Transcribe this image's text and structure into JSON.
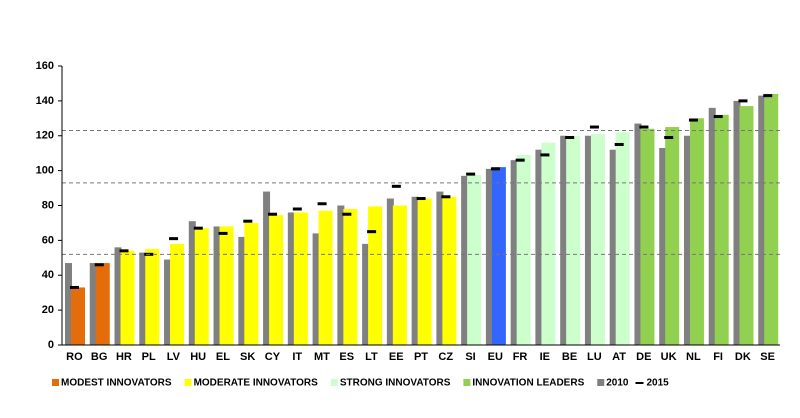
{
  "chart_data": {
    "type": "bar",
    "categories": [
      "RO",
      "BG",
      "HR",
      "PL",
      "LV",
      "HU",
      "EL",
      "SK",
      "CY",
      "IT",
      "MT",
      "ES",
      "LT",
      "EE",
      "PT",
      "CZ",
      "SI",
      "EU",
      "FR",
      "IE",
      "BE",
      "LU",
      "AT",
      "DE",
      "UK",
      "NL",
      "FI",
      "DK",
      "SE"
    ],
    "groups": [
      {
        "name": "MODEST INNOVATORS",
        "color": "#e46c0a"
      },
      {
        "name": "MODERATE INNOVATORS",
        "color": "#ffff00"
      },
      {
        "name": "STRONG INNOVATORS",
        "color": "#ccffcc"
      },
      {
        "name": "INNOVATION LEADERS",
        "color": "#92d050"
      }
    ],
    "series": [
      {
        "values": [
          33,
          47,
          54,
          55,
          58,
          67,
          68,
          70,
          74.5,
          76,
          77,
          78,
          79.5,
          80,
          84,
          85,
          97.5,
          102,
          109,
          116,
          120,
          121,
          122,
          124,
          125,
          130,
          132,
          137,
          144
        ],
        "colors": [
          "#e46c0a",
          "#e46c0a",
          "#ffff00",
          "#ffff00",
          "#ffff00",
          "#ffff00",
          "#ffff00",
          "#ffff00",
          "#ffff00",
          "#ffff00",
          "#ffff00",
          "#ffff00",
          "#ffff00",
          "#ffff00",
          "#ffff00",
          "#ffff00",
          "#ccffcc",
          "#3366ff",
          "#ccffcc",
          "#ccffcc",
          "#ccffcc",
          "#ccffcc",
          "#ccffcc",
          "#92d050",
          "#92d050",
          "#92d050",
          "#92d050",
          "#92d050",
          "#92d050"
        ]
      },
      {
        "name": "2010",
        "color": "#808080",
        "values": [
          47,
          47,
          56,
          53,
          49,
          71,
          68,
          62,
          88,
          76,
          64,
          80,
          58,
          84,
          85,
          88,
          97,
          101,
          106,
          112,
          120,
          120,
          112,
          127,
          113,
          120,
          136,
          140,
          143
        ]
      },
      {
        "name": "2015",
        "color": "#000000",
        "values": [
          33,
          46,
          54,
          52,
          61,
          67,
          64,
          71,
          75,
          78,
          81,
          75,
          65,
          91,
          84,
          85,
          98,
          101,
          106,
          109,
          119,
          125,
          115,
          125,
          119,
          129,
          131,
          140,
          143
        ]
      }
    ],
    "reference_lines": [
      52,
      93,
      123
    ],
    "ylim": [
      0,
      160
    ],
    "yticks": [
      0,
      20,
      40,
      60,
      80,
      100,
      120,
      140,
      160
    ]
  }
}
